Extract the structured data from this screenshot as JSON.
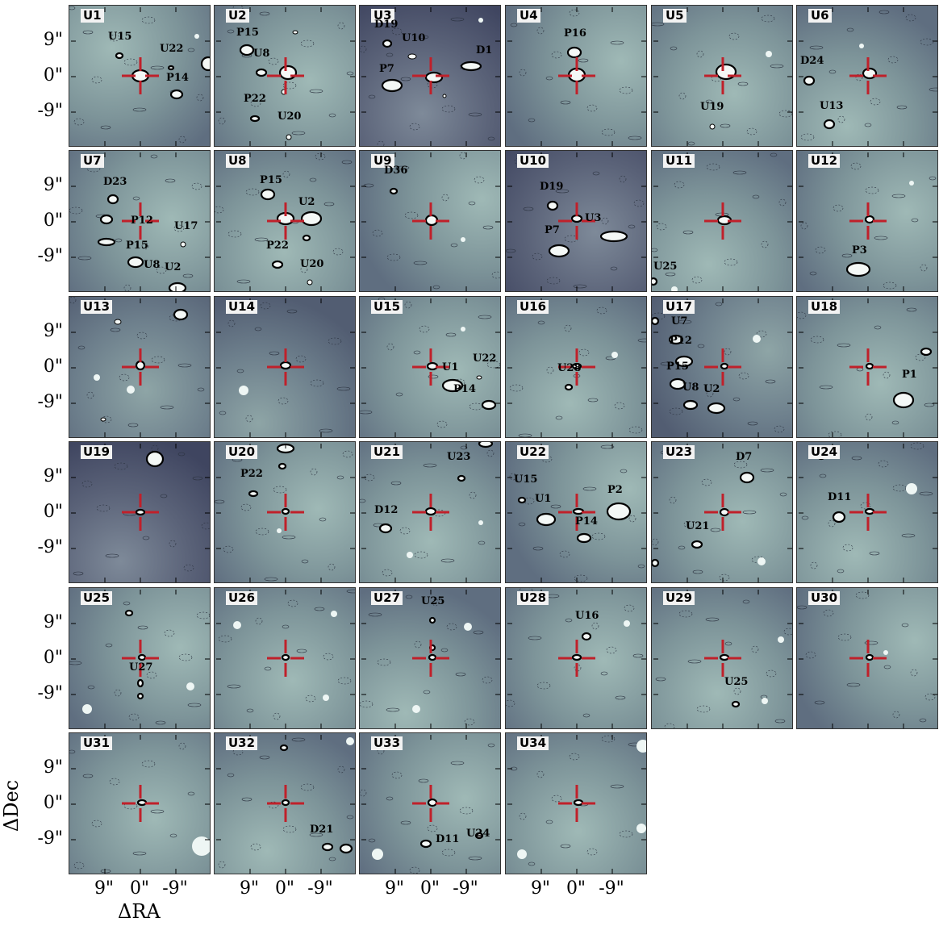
{
  "axes": {
    "xlabel": "ΔRA",
    "ylabel": "ΔDec",
    "xticks": [
      "9\"",
      "0\"",
      "-9\""
    ],
    "yticks": [
      "9\"",
      "0\"",
      "-9\""
    ]
  },
  "colors": {
    "crosshair": "#c0202a",
    "contour": "#000000"
  },
  "panels": [
    {
      "id": "U1",
      "bg": "light",
      "labels": [
        "U15",
        "U22",
        "P14"
      ]
    },
    {
      "id": "U2",
      "bg": "light",
      "labels": [
        "P15",
        "U8",
        "P22",
        "U20"
      ]
    },
    {
      "id": "U3",
      "bg": "dark",
      "labels": [
        "D19",
        "U10",
        "D1",
        "P7"
      ]
    },
    {
      "id": "U4",
      "bg": "light",
      "labels": [
        "P16"
      ]
    },
    {
      "id": "U5",
      "bg": "light",
      "labels": [
        "U19"
      ]
    },
    {
      "id": "U6",
      "bg": "light",
      "labels": [
        "D24",
        "U13"
      ]
    },
    {
      "id": "U7",
      "bg": "light",
      "labels": [
        "D23",
        "P12",
        "U17",
        "P15",
        "U8",
        "U2"
      ]
    },
    {
      "id": "U8",
      "bg": "light",
      "labels": [
        "P15",
        "U2",
        "P22",
        "U20"
      ]
    },
    {
      "id": "U9",
      "bg": "light",
      "labels": [
        "D36"
      ]
    },
    {
      "id": "U10",
      "bg": "dark",
      "labels": [
        "D19",
        "U3",
        "P7"
      ]
    },
    {
      "id": "U11",
      "bg": "light",
      "labels": [
        "U25"
      ]
    },
    {
      "id": "U12",
      "bg": "light",
      "labels": [
        "P3"
      ]
    },
    {
      "id": "U13",
      "bg": "mid",
      "labels": []
    },
    {
      "id": "U14",
      "bg": "mid",
      "labels": []
    },
    {
      "id": "U15",
      "bg": "light",
      "labels": [
        "U1",
        "U22",
        "P14"
      ]
    },
    {
      "id": "U16",
      "bg": "light",
      "labels": [
        "U28"
      ]
    },
    {
      "id": "U17",
      "bg": "mid",
      "labels": [
        "U7",
        "P12",
        "P15",
        "U8",
        "U2"
      ]
    },
    {
      "id": "U18",
      "bg": "light",
      "labels": [
        "P1"
      ]
    },
    {
      "id": "U19",
      "bg": "dark",
      "labels": []
    },
    {
      "id": "U20",
      "bg": "light",
      "labels": [
        "P22"
      ]
    },
    {
      "id": "U21",
      "bg": "light",
      "labels": [
        "U23",
        "D12"
      ]
    },
    {
      "id": "U22",
      "bg": "light",
      "labels": [
        "U15",
        "U1",
        "P2",
        "P14"
      ]
    },
    {
      "id": "U23",
      "bg": "light",
      "labels": [
        "D7",
        "U21"
      ]
    },
    {
      "id": "U24",
      "bg": "light",
      "labels": [
        "D11"
      ]
    },
    {
      "id": "U25",
      "bg": "light",
      "labels": [
        "U27"
      ]
    },
    {
      "id": "U26",
      "bg": "light",
      "labels": []
    },
    {
      "id": "U27",
      "bg": "light",
      "labels": [
        "U25"
      ]
    },
    {
      "id": "U28",
      "bg": "light",
      "labels": [
        "U16"
      ]
    },
    {
      "id": "U29",
      "bg": "light",
      "labels": [
        "U25"
      ]
    },
    {
      "id": "U30",
      "bg": "light",
      "labels": []
    },
    {
      "id": "U31",
      "bg": "light",
      "labels": []
    },
    {
      "id": "U32",
      "bg": "light",
      "labels": [
        "D21"
      ]
    },
    {
      "id": "U33",
      "bg": "light",
      "labels": [
        "D11",
        "U24"
      ]
    },
    {
      "id": "U34",
      "bg": "light",
      "labels": []
    }
  ]
}
